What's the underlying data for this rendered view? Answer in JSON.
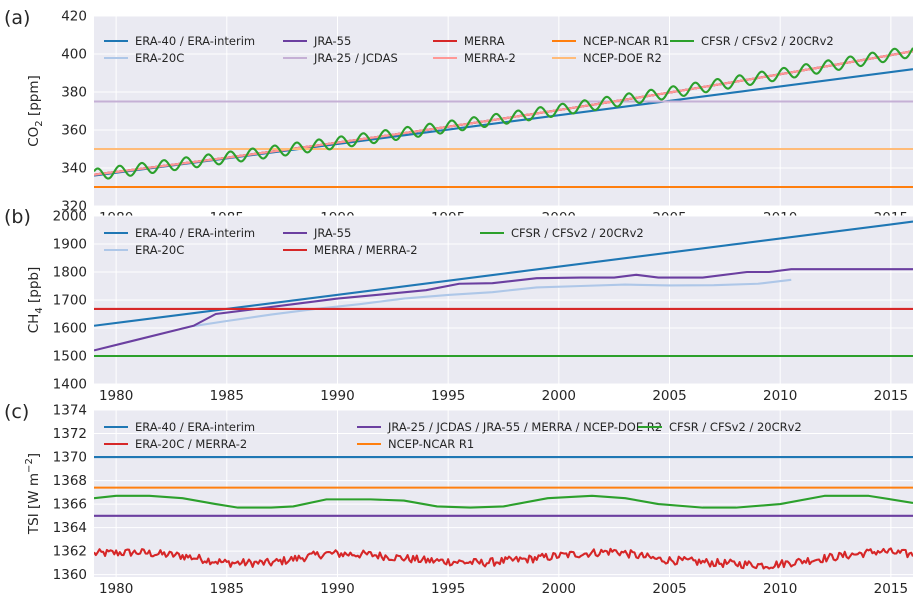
{
  "chart_data": [
    {
      "type": "line",
      "panel_label": "(a)",
      "ylabel": "CO2 [ppm]",
      "xlim": [
        1979,
        2016
      ],
      "ylim": [
        320,
        420
      ],
      "xticks": [
        1980,
        1985,
        1990,
        1995,
        2000,
        2005,
        2010,
        2015
      ],
      "yticks": [
        320,
        340,
        360,
        380,
        400,
        420
      ],
      "grid": true,
      "legend_position": "top",
      "legend_columns": 5,
      "series": [
        {
          "name": "ERA-40 / ERA-interim",
          "color": "#1f77b4",
          "kind": "line",
          "x": [
            1979,
            2016
          ],
          "y": [
            336,
            392
          ]
        },
        {
          "name": "ERA-20C",
          "color": "#aec7e8",
          "kind": "co2",
          "x": [
            1979,
            2016
          ],
          "y": [
            336.5,
            401.5
          ]
        },
        {
          "name": "JRA-55",
          "color": "#6b3fa0",
          "kind": "co2",
          "x": [
            1979,
            2016
          ],
          "y": [
            336.5,
            401.5
          ]
        },
        {
          "name": "JRA-25 / JCDAS",
          "color": "#c5b0d5",
          "kind": "const",
          "x": [
            1979,
            2016
          ],
          "y": [
            375,
            375
          ]
        },
        {
          "name": "MERRA",
          "color": "#d62728",
          "kind": "co2",
          "x": [
            1979,
            2016
          ],
          "y": [
            336.5,
            401.5
          ]
        },
        {
          "name": "MERRA-2",
          "color": "#ff9896",
          "kind": "co2",
          "x": [
            1979,
            2016
          ],
          "y": [
            336.5,
            401.5
          ]
        },
        {
          "name": "NCEP-NCAR R1",
          "color": "#ff7f0e",
          "kind": "const",
          "x": [
            1979,
            2016
          ],
          "y": [
            330,
            330
          ]
        },
        {
          "name": "NCEP-DOE R2",
          "color": "#ffbb78",
          "kind": "const",
          "x": [
            1979,
            2016
          ],
          "y": [
            350,
            350
          ]
        },
        {
          "name": "CFSR / CFSv2 / 20CRv2",
          "color": "#2ca02c",
          "kind": "co2seasonal",
          "x": [
            1979,
            2016
          ],
          "y": [
            336.5,
            401.5
          ],
          "amplitude": 3
        }
      ]
    },
    {
      "type": "line",
      "panel_label": "(b)",
      "ylabel": "CH4 [ppb]",
      "xlim": [
        1979,
        2016
      ],
      "ylim": [
        1400,
        2000
      ],
      "xticks": [
        1980,
        1985,
        1990,
        1995,
        2000,
        2005,
        2010,
        2015
      ],
      "yticks": [
        1400,
        1500,
        1600,
        1700,
        1800,
        1900,
        2000
      ],
      "grid": true,
      "legend_position": "top",
      "legend_columns": 3,
      "series": [
        {
          "name": "ERA-40 / ERA-interim",
          "color": "#1f77b4",
          "kind": "line",
          "x": [
            1979,
            2016
          ],
          "y": [
            1608,
            1980
          ]
        },
        {
          "name": "ERA-20C",
          "color": "#aec7e8",
          "kind": "line",
          "x": [
            1983.5,
            1985,
            1987,
            1989,
            1991,
            1993,
            1995,
            1997,
            1999,
            2001,
            2003,
            2005,
            2007,
            2009,
            2010.5
          ],
          "y": [
            1607,
            1625,
            1648,
            1668,
            1685,
            1705,
            1718,
            1728,
            1745,
            1750,
            1755,
            1752,
            1753,
            1758,
            1772
          ]
        },
        {
          "name": "JRA-55",
          "color": "#6b3fa0",
          "kind": "line",
          "x": [
            1979,
            1983.5,
            1984.5,
            1986,
            1988,
            1990,
            1992,
            1994,
            1995.5,
            1997,
            1999,
            2001,
            2002.5,
            2003.5,
            2004.5,
            2006.5,
            2008.5,
            2009.5,
            2010.5,
            2013,
            2016
          ],
          "y": [
            1520,
            1608,
            1650,
            1665,
            1685,
            1705,
            1720,
            1735,
            1758,
            1760,
            1778,
            1780,
            1780,
            1790,
            1780,
            1780,
            1800,
            1800,
            1810,
            1810,
            1810
          ]
        },
        {
          "name": "MERRA / MERRA-2",
          "color": "#d62728",
          "kind": "const",
          "x": [
            1979,
            2016
          ],
          "y": [
            1668,
            1668
          ]
        },
        {
          "name": "CFSR / CFSv2 / 20CRv2",
          "color": "#2ca02c",
          "kind": "const",
          "x": [
            1979,
            2016
          ],
          "y": [
            1500,
            1500
          ]
        }
      ]
    },
    {
      "type": "line",
      "panel_label": "(c)",
      "ylabel": "TSI [W m−2]",
      "xlim": [
        1979,
        2016
      ],
      "ylim": [
        1359.8,
        1374
      ],
      "xticks": [
        1980,
        1985,
        1990,
        1995,
        2000,
        2005,
        2010,
        2015
      ],
      "yticks": [
        1360,
        1362,
        1364,
        1366,
        1368,
        1370,
        1372,
        1374
      ],
      "grid": true,
      "legend_position": "top",
      "legend_columns": 3,
      "series": [
        {
          "name": "ERA-40 / ERA-interim",
          "color": "#1f77b4",
          "kind": "const",
          "x": [
            1979,
            2016
          ],
          "y": [
            1370,
            1370
          ]
        },
        {
          "name": "ERA-20C / MERRA-2",
          "color": "#d62728",
          "kind": "noisy",
          "x": [
            1979,
            1981,
            1983,
            1985,
            1987,
            1989.5,
            1991.5,
            1994,
            1996.5,
            1998.5,
            2000.5,
            2002.5,
            2004.5,
            2007,
            2009.5,
            2012,
            2014.5,
            2016
          ],
          "y": [
            1361.8,
            1361.9,
            1361.6,
            1361.0,
            1361.0,
            1361.8,
            1361.7,
            1361.2,
            1361.0,
            1361.3,
            1361.7,
            1362.0,
            1361.3,
            1361.0,
            1360.8,
            1361.4,
            1362.0,
            1361.7
          ],
          "noise": 0.35
        },
        {
          "name": "JRA-25 / JCDAS / JRA-55 / MERRA / NCEP-DOE R2",
          "color": "#6b3fa0",
          "kind": "const",
          "x": [
            1979,
            2016
          ],
          "y": [
            1365,
            1365
          ]
        },
        {
          "name": "NCEP-NCAR R1",
          "color": "#ff7f0e",
          "kind": "const",
          "x": [
            1979,
            2016
          ],
          "y": [
            1367.4,
            1367.4
          ]
        },
        {
          "name": "CFSR / CFSv2 / 20CRv2",
          "color": "#2ca02c",
          "kind": "line",
          "x": [
            1979,
            1980,
            1981.5,
            1983,
            1984.5,
            1985.5,
            1987,
            1988,
            1989.5,
            1991.5,
            1993,
            1994.5,
            1996,
            1997.5,
            1999.5,
            2001.5,
            2003,
            2004.5,
            2006.5,
            2008,
            2010,
            2012,
            2014,
            2016
          ],
          "y": [
            1366.5,
            1366.7,
            1366.7,
            1366.5,
            1366.0,
            1365.7,
            1365.7,
            1365.8,
            1366.4,
            1366.4,
            1366.3,
            1365.8,
            1365.7,
            1365.8,
            1366.5,
            1366.7,
            1366.5,
            1366.0,
            1365.7,
            1365.7,
            1366.0,
            1366.7,
            1366.7,
            1366.1
          ]
        }
      ]
    }
  ]
}
